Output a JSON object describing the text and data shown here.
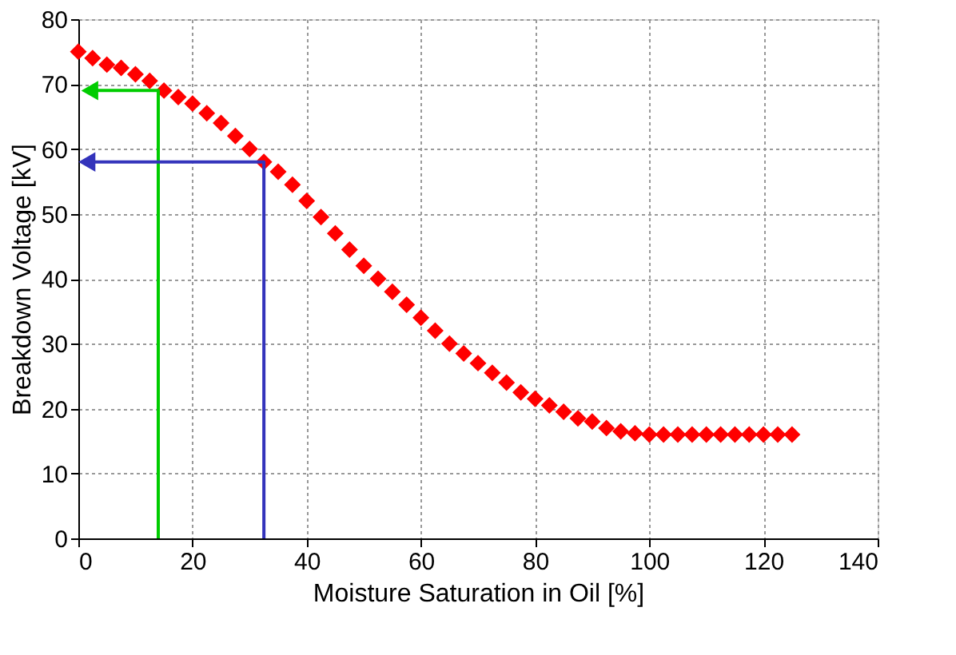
{
  "chart_data": {
    "type": "scatter",
    "xlabel": "Moisture Saturation in Oil [%]",
    "ylabel": "Breakdown Voltage [kV]",
    "xlim": [
      0,
      140
    ],
    "xticks": [
      0,
      20,
      40,
      60,
      80,
      100,
      120,
      140
    ],
    "ylim": [
      0,
      80
    ],
    "yticks": [
      0,
      10,
      20,
      30,
      40,
      50,
      60,
      70,
      80
    ],
    "grid": true,
    "series": [
      {
        "marker": "diamond",
        "color": "#ff0000",
        "x": [
          0,
          2.5,
          5,
          7.5,
          10,
          12.5,
          15,
          17.5,
          20,
          22.5,
          25,
          27.5,
          30,
          32.5,
          35,
          37.5,
          40,
          42.5,
          45,
          47.5,
          50,
          52.5,
          55,
          57.5,
          60,
          62.5,
          65,
          67.5,
          70,
          72.5,
          75,
          77.5,
          80,
          82.5,
          85,
          87.5,
          90,
          92.5,
          95,
          97.5,
          100,
          102.5,
          105,
          107.5,
          110,
          112.5,
          115,
          117.5,
          120,
          122.5,
          125
        ],
        "values": [
          75,
          74,
          73,
          72.5,
          71.5,
          70.5,
          69,
          68,
          67,
          65.5,
          64,
          62,
          60,
          58,
          56.5,
          54.5,
          52,
          49.5,
          47,
          44.5,
          42,
          40,
          38,
          36,
          34,
          32,
          30,
          28.5,
          27,
          25.5,
          24,
          22.5,
          21.5,
          20.5,
          19.5,
          18.5,
          18,
          17,
          16.5,
          16.2,
          16,
          16,
          16,
          16,
          16,
          16,
          16,
          16,
          16,
          16,
          16
        ]
      },
      {
        "type": "line",
        "marker": "none",
        "color": "#00cc00",
        "x": [
          14,
          14,
          2
        ],
        "values": [
          0,
          69,
          69
        ]
      },
      {
        "type": "line",
        "marker": "none",
        "color": "#3333bb",
        "x": [
          32.5,
          32.5,
          1.5
        ],
        "values": [
          0,
          58,
          58
        ]
      }
    ]
  }
}
